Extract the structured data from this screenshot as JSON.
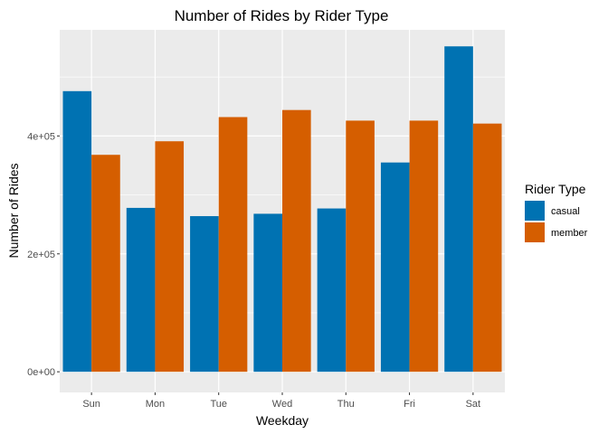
{
  "chart_data": {
    "type": "bar",
    "title": "Number of Rides by Rider Type",
    "xlabel": "Weekday",
    "ylabel": "Number of Rides",
    "categories": [
      "Sun",
      "Mon",
      "Tue",
      "Wed",
      "Thu",
      "Fri",
      "Sat"
    ],
    "series": [
      {
        "name": "casual",
        "color": "#0072B2",
        "values": [
          476000,
          278000,
          264000,
          268000,
          277000,
          355000,
          552000
        ]
      },
      {
        "name": "member",
        "color": "#D55E00",
        "values": [
          368000,
          391000,
          432000,
          444000,
          426000,
          426000,
          421000
        ]
      }
    ],
    "ylim": [
      -35000,
      580000
    ],
    "yticks": [
      0,
      200000,
      400000
    ],
    "ytick_labels": [
      "0e+00",
      "2e+05",
      "4e+05"
    ],
    "legend": {
      "title": "Rider Type",
      "placement": "right"
    },
    "grid": true,
    "panel_background": "#EBEBEB",
    "grid_color": "#FFFFFF"
  }
}
